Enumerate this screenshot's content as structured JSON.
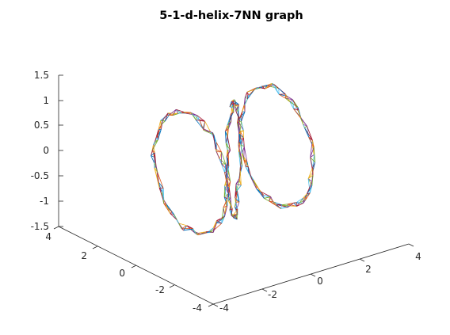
{
  "chart_data": {
    "type": "line",
    "title": "5-1-d-helix-7NN graph",
    "xlabel": "",
    "ylabel": "",
    "zlabel": "",
    "axes": {
      "x": {
        "ticks": [
          "-4",
          "-2",
          "0",
          "2",
          "4"
        ],
        "range": [
          -4,
          4
        ]
      },
      "y": {
        "ticks": [
          "-4",
          "-2",
          "0",
          "2",
          "4"
        ],
        "range": [
          -4,
          4
        ]
      },
      "z": {
        "ticks": [
          "-1.5",
          "-1",
          "-0.5",
          "0",
          "0.5",
          "1",
          "1.5"
        ],
        "range": [
          -1.5,
          1.5
        ]
      }
    },
    "grid": false,
    "legend": "none",
    "helix_loops": [
      {
        "center_x": -1.75,
        "radius": 2.1
      },
      {
        "center_x": 0.0,
        "radius": 0.35
      },
      {
        "center_x": 1.75,
        "radius": 2.1
      }
    ],
    "edge_colors": [
      "#0072bd",
      "#d95319",
      "#edb120",
      "#7e2f8e",
      "#77ac30",
      "#4dbeee",
      "#a2142f"
    ]
  }
}
